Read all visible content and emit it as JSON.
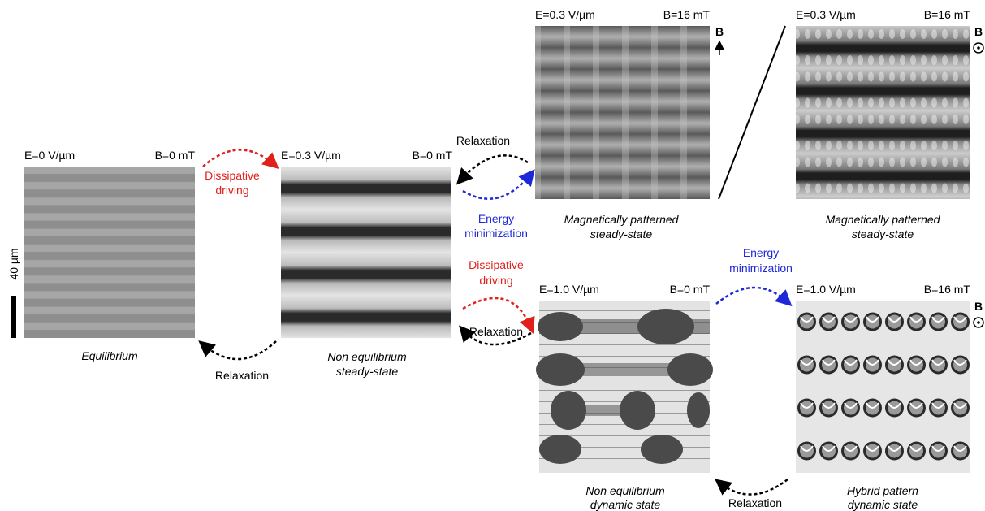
{
  "panels": [
    {
      "field": "E=0 V/µm",
      "magnet": "B=0 mT",
      "caption": [
        "Equilibrium"
      ]
    },
    {
      "field": "E=0.3 V/µm",
      "magnet": "B=0 mT",
      "caption": [
        "Non equilibrium",
        "steady-state"
      ]
    },
    {
      "field": "E=0.3 V/µm",
      "magnet": "B=16 mT",
      "caption": [
        "Magnetically patterned",
        "steady-state"
      ]
    },
    {
      "field": "E=0.3 V/µm",
      "magnet": "B=16 mT",
      "caption": [
        "Magnetically patterned",
        "steady-state"
      ]
    },
    {
      "field": "E=1.0 V/µm",
      "magnet": "B=0 mT",
      "caption": [
        "Non equilibrium",
        "dynamic state"
      ]
    },
    {
      "field": "E=1.0 V/µm",
      "magnet": "B=16 mT",
      "caption": [
        "Hybrid pattern",
        "dynamic state"
      ]
    }
  ],
  "arrows": [
    {
      "label": [
        "Dissipative",
        "driving"
      ]
    },
    {
      "label": [
        "Relaxation"
      ]
    },
    {
      "label": [
        "Relaxation"
      ]
    },
    {
      "label": [
        "Energy",
        "minimization"
      ]
    },
    {
      "label": [
        "Dissipative",
        "driving"
      ]
    },
    {
      "label": [
        "Relaxation"
      ]
    },
    {
      "label": [
        "Energy",
        "minimization"
      ]
    },
    {
      "label": [
        "Relaxation"
      ]
    }
  ],
  "scale_bar": "40 µm",
  "field_symbols": [
    "B",
    "B",
    "B"
  ]
}
